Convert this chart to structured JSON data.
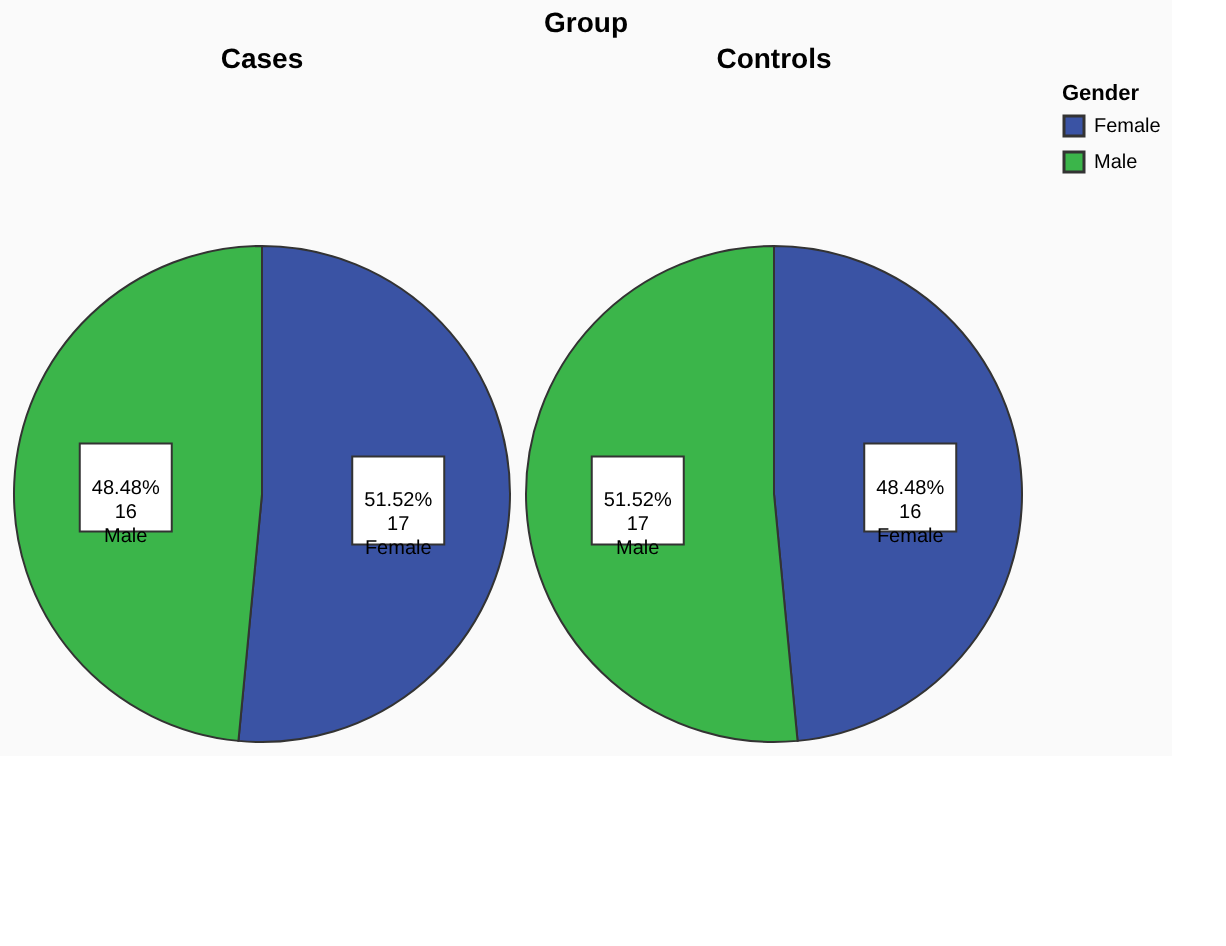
{
  "chart_data": [
    {
      "type": "pie",
      "title": "Cases",
      "annotations": [
        "Group"
      ],
      "legend_title": "Gender",
      "legend": "top right",
      "categories": [
        "Female",
        "Male"
      ],
      "values": [
        17,
        16
      ],
      "colors": [
        "#3a53a4",
        "#3bb54a"
      ],
      "value_labels": [
        "51.52%\n17",
        "48.48%\n16"
      ]
    },
    {
      "type": "pie",
      "title": "Controls",
      "categories": [
        "Female",
        "Male"
      ],
      "values": [
        16,
        17
      ],
      "colors": [
        "#3a53a4",
        "#3bb54a"
      ],
      "value_labels": [
        "48.48%\n16",
        "51.52%\n17"
      ]
    }
  ]
}
